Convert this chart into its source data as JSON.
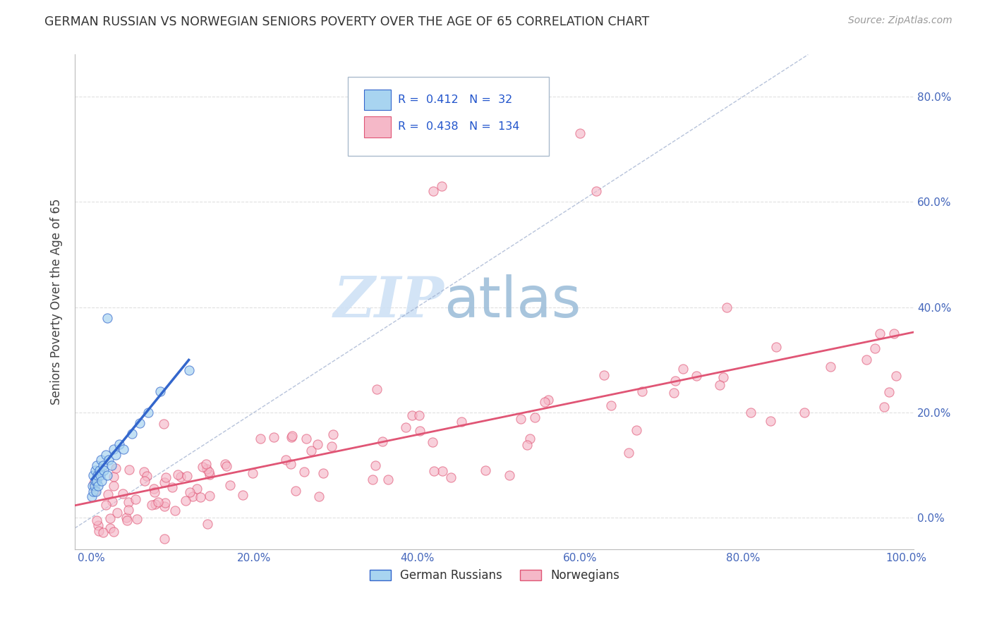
{
  "title": "GERMAN RUSSIAN VS NORWEGIAN SENIORS POVERTY OVER THE AGE OF 65 CORRELATION CHART",
  "source": "Source: ZipAtlas.com",
  "ylabel": "Seniors Poverty Over the Age of 65",
  "r_german": 0.412,
  "n_german": 32,
  "r_norwegian": 0.438,
  "n_norwegian": 134,
  "dot_color_german": "#a8d4f0",
  "dot_color_norwegian": "#f5b8c8",
  "line_color_german": "#3366cc",
  "line_color_norwegian": "#e05575",
  "background_color": "#ffffff",
  "grid_color": "#cccccc",
  "xlim": [
    -0.02,
    1.01
  ],
  "ylim": [
    -0.06,
    0.88
  ],
  "xticks": [
    0.0,
    0.2,
    0.4,
    0.6,
    0.8,
    1.0
  ],
  "yticks": [
    0.0,
    0.2,
    0.4,
    0.6,
    0.8
  ],
  "xtick_labels": [
    "0.0%",
    "20.0%",
    "40.0%",
    "60.0%",
    "80.0%",
    "100.0%"
  ],
  "ytick_labels": [
    "0.0%",
    "20.0%",
    "40.0%",
    "60.0%",
    "80.0%"
  ],
  "legend_labels": [
    "German Russians",
    "Norwegians"
  ]
}
